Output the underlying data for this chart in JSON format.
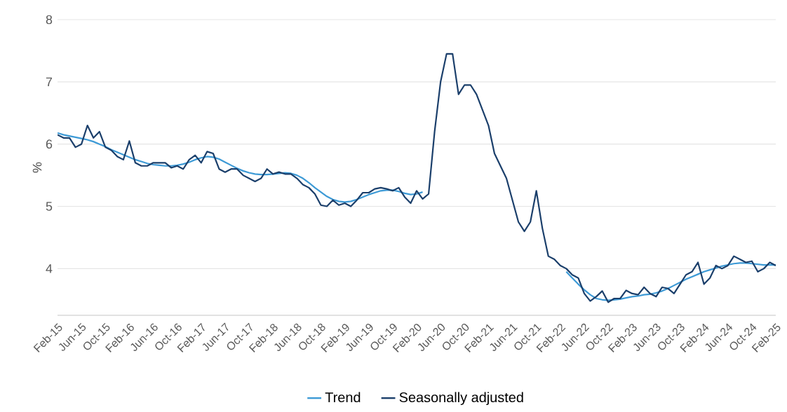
{
  "chart_data": {
    "type": "line",
    "ylabel": "%",
    "categories": [
      "Feb-15",
      null,
      null,
      null,
      "Jun-15",
      null,
      null,
      null,
      "Oct-15",
      null,
      null,
      null,
      "Feb-16",
      null,
      null,
      null,
      "Jun-16",
      null,
      null,
      null,
      "Oct-16",
      null,
      null,
      null,
      "Feb-17",
      null,
      null,
      null,
      "Jun-17",
      null,
      null,
      null,
      "Oct-17",
      null,
      null,
      null,
      "Feb-18",
      null,
      null,
      null,
      "Jun-18",
      null,
      null,
      null,
      "Oct-18",
      null,
      null,
      null,
      "Feb-19",
      null,
      null,
      null,
      "Jun-19",
      null,
      null,
      null,
      "Oct-19",
      null,
      null,
      null,
      "Feb-20",
      null,
      null,
      null,
      "Jun-20",
      null,
      null,
      null,
      "Oct-20",
      null,
      null,
      null,
      "Feb-21",
      null,
      null,
      null,
      "Jun-21",
      null,
      null,
      null,
      "Oct-21",
      null,
      null,
      null,
      "Feb-22",
      null,
      null,
      null,
      "Jun-22",
      null,
      null,
      null,
      "Oct-22",
      null,
      null,
      null,
      "Feb-23",
      null,
      null,
      null,
      "Jun-23",
      null,
      null,
      null,
      "Oct-23",
      null,
      null,
      null,
      "Feb-24",
      null,
      null,
      null,
      "Jun-24",
      null,
      null,
      null,
      "Oct-24",
      null,
      null,
      null,
      "Feb-25"
    ],
    "series": [
      {
        "name": "Trend",
        "color": "#3d9ad6",
        "values": [
          6.18,
          6.15,
          6.13,
          6.11,
          6.09,
          6.07,
          6.04,
          6.0,
          5.96,
          5.91,
          5.87,
          5.83,
          5.79,
          5.75,
          5.72,
          5.69,
          5.67,
          5.66,
          5.65,
          5.65,
          5.66,
          5.68,
          5.71,
          5.75,
          5.78,
          5.8,
          5.79,
          5.76,
          5.71,
          5.66,
          5.61,
          5.57,
          5.54,
          5.52,
          5.51,
          5.51,
          5.52,
          5.53,
          5.54,
          5.53,
          5.5,
          5.45,
          5.38,
          5.3,
          5.23,
          5.16,
          5.11,
          5.08,
          5.07,
          5.08,
          5.11,
          5.15,
          5.19,
          5.22,
          5.25,
          5.26,
          5.26,
          5.24,
          5.21,
          5.19,
          5.2,
          5.23,
          null,
          null,
          null,
          null,
          null,
          null,
          null,
          null,
          null,
          null,
          null,
          null,
          null,
          null,
          null,
          null,
          null,
          null,
          null,
          null,
          null,
          null,
          null,
          3.95,
          3.85,
          3.75,
          3.66,
          3.58,
          3.52,
          3.5,
          3.49,
          3.5,
          3.51,
          3.53,
          3.55,
          3.56,
          3.58,
          3.59,
          3.61,
          3.64,
          3.68,
          3.73,
          3.78,
          3.83,
          3.87,
          3.91,
          3.95,
          3.98,
          4.01,
          4.04,
          4.06,
          4.08,
          4.09,
          4.09,
          4.08,
          4.07,
          4.06,
          4.06,
          4.06
        ]
      },
      {
        "name": "Seasonally adjusted",
        "color": "#1b3f6b",
        "values": [
          6.15,
          6.1,
          6.1,
          5.95,
          6.0,
          6.3,
          6.1,
          6.2,
          5.95,
          5.9,
          5.8,
          5.75,
          6.05,
          5.7,
          5.65,
          5.65,
          5.7,
          5.7,
          5.7,
          5.62,
          5.65,
          5.6,
          5.75,
          5.82,
          5.7,
          5.88,
          5.85,
          5.6,
          5.55,
          5.6,
          5.6,
          5.5,
          5.45,
          5.4,
          5.45,
          5.6,
          5.52,
          5.55,
          5.52,
          5.52,
          5.45,
          5.35,
          5.3,
          5.2,
          5.02,
          5.0,
          5.1,
          5.02,
          5.05,
          5.0,
          5.1,
          5.22,
          5.22,
          5.28,
          5.3,
          5.28,
          5.25,
          5.3,
          5.15,
          5.05,
          5.25,
          5.12,
          5.2,
          6.2,
          7.0,
          7.45,
          7.45,
          6.8,
          6.95,
          6.95,
          6.8,
          6.55,
          6.3,
          5.85,
          5.65,
          5.45,
          5.1,
          4.75,
          4.6,
          4.75,
          5.25,
          4.65,
          4.2,
          4.15,
          4.05,
          4.0,
          3.9,
          3.85,
          3.6,
          3.48,
          3.55,
          3.64,
          3.46,
          3.52,
          3.52,
          3.65,
          3.6,
          3.58,
          3.7,
          3.6,
          3.55,
          3.7,
          3.68,
          3.6,
          3.75,
          3.9,
          3.95,
          4.1,
          3.75,
          3.85,
          4.05,
          4.0,
          4.05,
          4.2,
          4.15,
          4.1,
          4.12,
          3.95,
          4.0,
          4.1,
          4.05
        ]
      }
    ],
    "ylim": [
      3.25,
      8
    ],
    "yticks": [
      4,
      5,
      6,
      7,
      8
    ],
    "grid": "y",
    "legend": "bottom"
  }
}
